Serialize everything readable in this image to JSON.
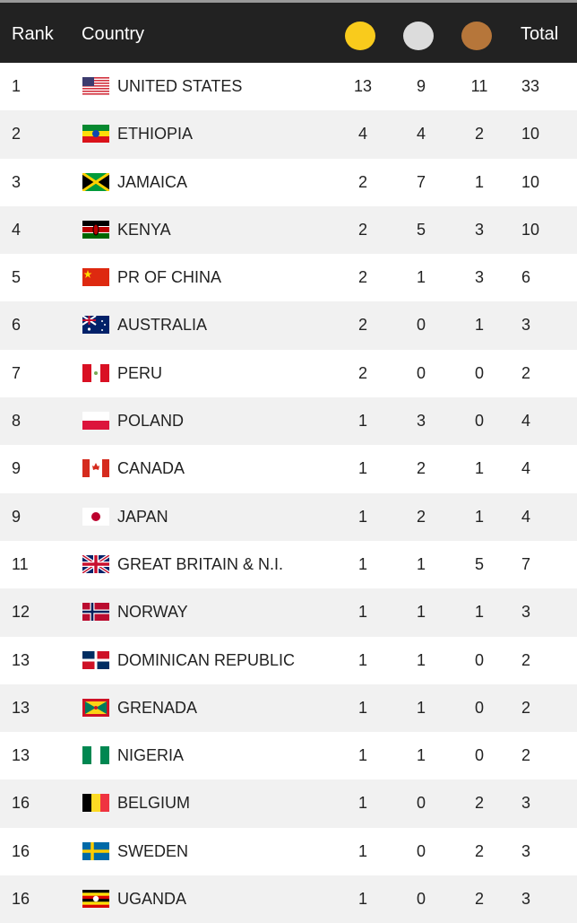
{
  "header": {
    "rank": "Rank",
    "country": "Country",
    "total": "Total",
    "medals": [
      {
        "name": "gold",
        "color": "#f9cb1c"
      },
      {
        "name": "silver",
        "color": "#dcdcdc"
      },
      {
        "name": "bronze",
        "color": "#b6763a"
      }
    ]
  },
  "rows": [
    {
      "rank": "1",
      "flag": "us",
      "country": "UNITED STATES",
      "gold": "13",
      "silver": "9",
      "bronze": "11",
      "total": "33"
    },
    {
      "rank": "2",
      "flag": "ethiopia",
      "country": "ETHIOPIA",
      "gold": "4",
      "silver": "4",
      "bronze": "2",
      "total": "10"
    },
    {
      "rank": "3",
      "flag": "jamaica",
      "country": "JAMAICA",
      "gold": "2",
      "silver": "7",
      "bronze": "1",
      "total": "10"
    },
    {
      "rank": "4",
      "flag": "kenya",
      "country": "KENYA",
      "gold": "2",
      "silver": "5",
      "bronze": "3",
      "total": "10"
    },
    {
      "rank": "5",
      "flag": "china",
      "country": "PR OF CHINA",
      "gold": "2",
      "silver": "1",
      "bronze": "3",
      "total": "6"
    },
    {
      "rank": "6",
      "flag": "australia",
      "country": "AUSTRALIA",
      "gold": "2",
      "silver": "0",
      "bronze": "1",
      "total": "3"
    },
    {
      "rank": "7",
      "flag": "peru",
      "country": "PERU",
      "gold": "2",
      "silver": "0",
      "bronze": "0",
      "total": "2"
    },
    {
      "rank": "8",
      "flag": "poland",
      "country": "POLAND",
      "gold": "1",
      "silver": "3",
      "bronze": "0",
      "total": "4"
    },
    {
      "rank": "9",
      "flag": "canada",
      "country": "CANADA",
      "gold": "1",
      "silver": "2",
      "bronze": "1",
      "total": "4"
    },
    {
      "rank": "9",
      "flag": "japan",
      "country": "JAPAN",
      "gold": "1",
      "silver": "2",
      "bronze": "1",
      "total": "4"
    },
    {
      "rank": "11",
      "flag": "gb",
      "country": "GREAT BRITAIN & N.I.",
      "gold": "1",
      "silver": "1",
      "bronze": "5",
      "total": "7"
    },
    {
      "rank": "12",
      "flag": "norway",
      "country": "NORWAY",
      "gold": "1",
      "silver": "1",
      "bronze": "1",
      "total": "3"
    },
    {
      "rank": "13",
      "flag": "dominican",
      "country": "DOMINICAN REPUBLIC",
      "gold": "1",
      "silver": "1",
      "bronze": "0",
      "total": "2"
    },
    {
      "rank": "13",
      "flag": "grenada",
      "country": "GRENADA",
      "gold": "1",
      "silver": "1",
      "bronze": "0",
      "total": "2"
    },
    {
      "rank": "13",
      "flag": "nigeria",
      "country": "NIGERIA",
      "gold": "1",
      "silver": "1",
      "bronze": "0",
      "total": "2"
    },
    {
      "rank": "16",
      "flag": "belgium",
      "country": "BELGIUM",
      "gold": "1",
      "silver": "0",
      "bronze": "2",
      "total": "3"
    },
    {
      "rank": "16",
      "flag": "sweden",
      "country": "SWEDEN",
      "gold": "1",
      "silver": "0",
      "bronze": "2",
      "total": "3"
    },
    {
      "rank": "16",
      "flag": "uganda",
      "country": "UGANDA",
      "gold": "1",
      "silver": "0",
      "bronze": "2",
      "total": "3"
    }
  ]
}
